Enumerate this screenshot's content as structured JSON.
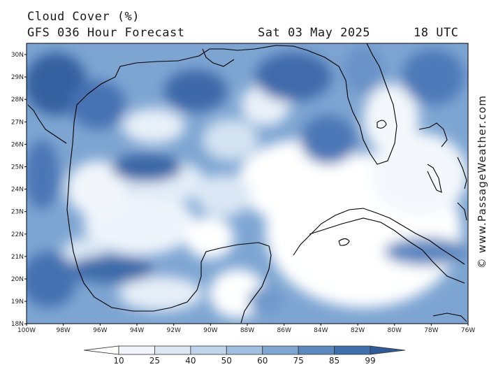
{
  "header": {
    "title": "Cloud Cover (%)",
    "subtitle": "GFS 036 Hour Forecast",
    "date": "Sat 03 May 2025",
    "time": "18 UTC"
  },
  "map": {
    "region": "Gulf of Mexico",
    "lat_labels": [
      "30N",
      "29N",
      "28N",
      "27N",
      "26N",
      "25N",
      "24N",
      "23N",
      "22N",
      "21N",
      "20N",
      "19N",
      "18N"
    ],
    "lon_labels": [
      "100W",
      "98W",
      "96W",
      "94W",
      "92W",
      "90W",
      "88W",
      "86W",
      "84W",
      "82W",
      "80W",
      "78W",
      "76W"
    ]
  },
  "colorbar": {
    "levels": [
      "10",
      "25",
      "40",
      "50",
      "60",
      "75",
      "85",
      "99"
    ],
    "colors": [
      "#ffffff",
      "#f0f5fb",
      "#dde8f4",
      "#bfd4ea",
      "#a1bfe0",
      "#7fa6d1",
      "#5b89c0",
      "#3f6fae",
      "#2f5a95"
    ]
  },
  "credit": "© www.PassageWeather.com"
}
